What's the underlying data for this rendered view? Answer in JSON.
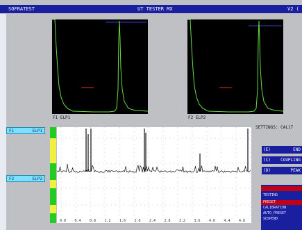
{
  "app": {
    "vendor": "SOFRATEST",
    "title": "UT TESTER MX",
    "version": "V2 ("
  },
  "scopes": [
    {
      "label": "F1  ELP1"
    },
    {
      "label": "F2  ELP2"
    }
  ],
  "channels": [
    {
      "id": "F1",
      "name": "ELP1"
    },
    {
      "id": "F2",
      "name": "ELP2"
    }
  ],
  "settings_label": "SETTINGS: CAL17",
  "menu": [
    {
      "key": "(E)",
      "text": "END"
    },
    {
      "key": "(C)",
      "text": "COUPLING"
    },
    {
      "key": "(D)",
      "text": "PEAK"
    }
  ],
  "status_menu": [
    "TESTING",
    "PRESET",
    "CALIBRATION",
    "AUTO_PRESET",
    "SUSPEND"
  ],
  "colors": {
    "title_bar": "#1a1fa0",
    "scope_bg": "#000000",
    "signal": "#66dd44",
    "gate": "#3a3ad8",
    "threshold": "#e03030",
    "channel_button": "#7de0ff",
    "sidebar_green": "#22cc22",
    "sidebar_yellow": "#f0f040"
  },
  "chart_data": {
    "type": "line",
    "title": "",
    "xlabel": "",
    "ylabel": "",
    "x_ticks": [
      "0.0",
      "0.4",
      "0.8",
      "1.2",
      "1.6",
      "2.0",
      "2.4",
      "2.8",
      "3.2",
      "3.6",
      "4.0",
      "4.4",
      "4.8"
    ],
    "xlim": [
      0,
      5.0
    ],
    "ylim": [
      0,
      100
    ],
    "grid": true
  }
}
